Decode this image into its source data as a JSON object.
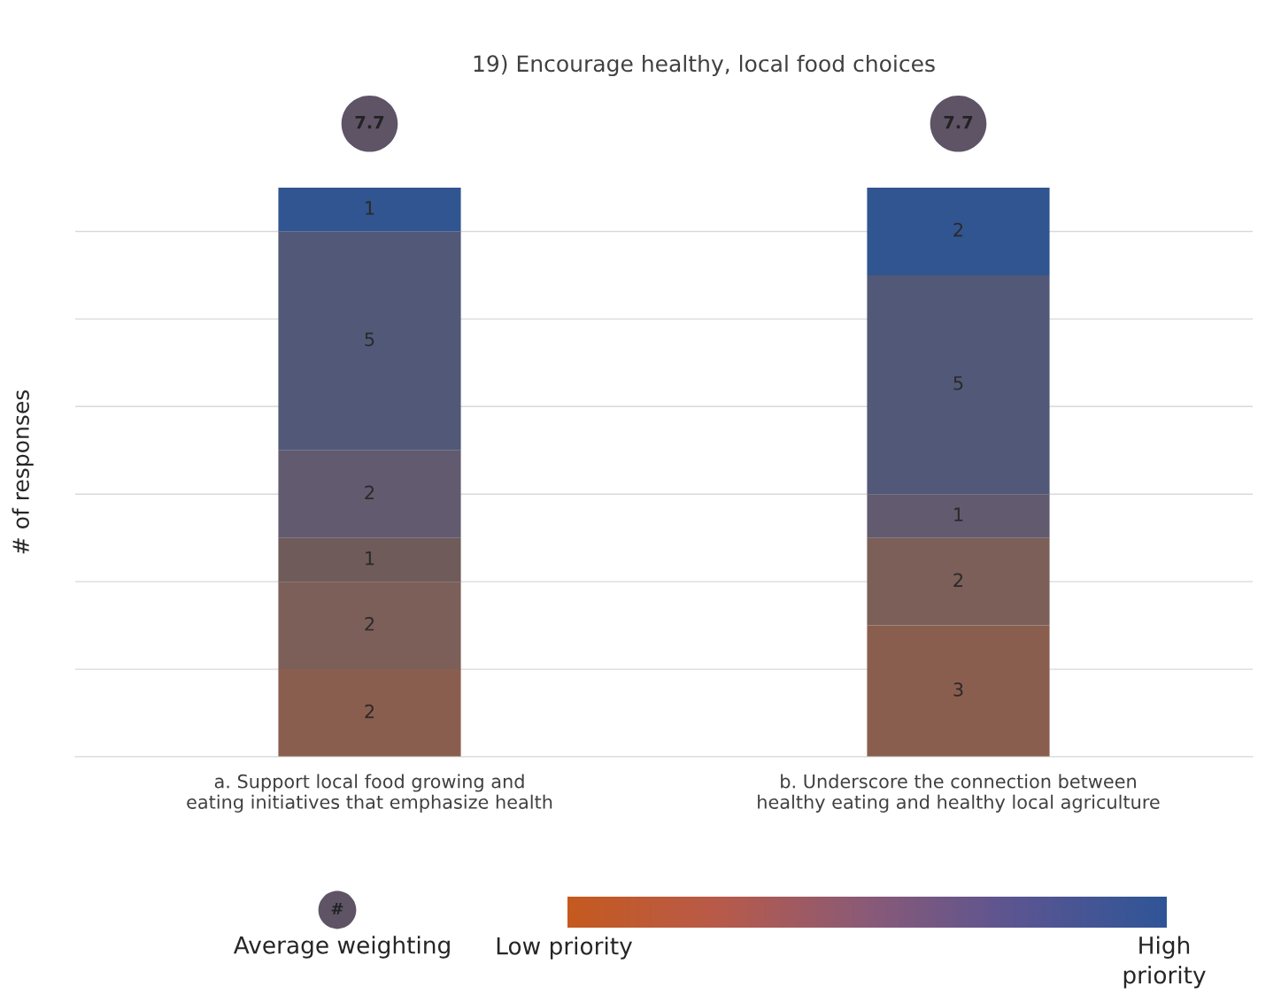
{
  "chart_data": {
    "type": "bar",
    "title": "19) Encourage healthy, local food choices",
    "ylabel": "# of responses",
    "categories": [
      "a. Support local food growing and eating initiatives that emphasize health",
      "b. Underscore the connection between healthy eating and healthy local agriculture"
    ],
    "stacked": true,
    "data_labels": true,
    "grid": "y",
    "legend": false,
    "tick_labels": "x",
    "ylim": [
      0,
      13
    ],
    "yticks": [
      {
        "value": 0,
        "label": null
      },
      {
        "value": 2,
        "label": null
      },
      {
        "value": 4,
        "label": null
      },
      {
        "value": 6,
        "label": null
      },
      {
        "value": 8,
        "label": null
      },
      {
        "value": 10,
        "label": null
      },
      {
        "value": 12,
        "label": null
      }
    ],
    "series": [
      {
        "color": "#8a5e4e",
        "values": [
          2,
          3
        ]
      },
      {
        "color": "#7b5f58",
        "values": [
          2,
          2
        ]
      },
      {
        "color": "#6e5b5a",
        "values": [
          1,
          null
        ]
      },
      {
        "color": "#625a6e",
        "values": [
          2,
          1
        ]
      },
      {
        "color": "#525877",
        "values": [
          5,
          5
        ]
      },
      {
        "color": "#315590",
        "values": [
          1,
          2
        ]
      }
    ],
    "annotations": [
      "7.7",
      "7.7",
      "#",
      "Average weighting",
      "Low priority",
      "High priority"
    ]
  }
}
